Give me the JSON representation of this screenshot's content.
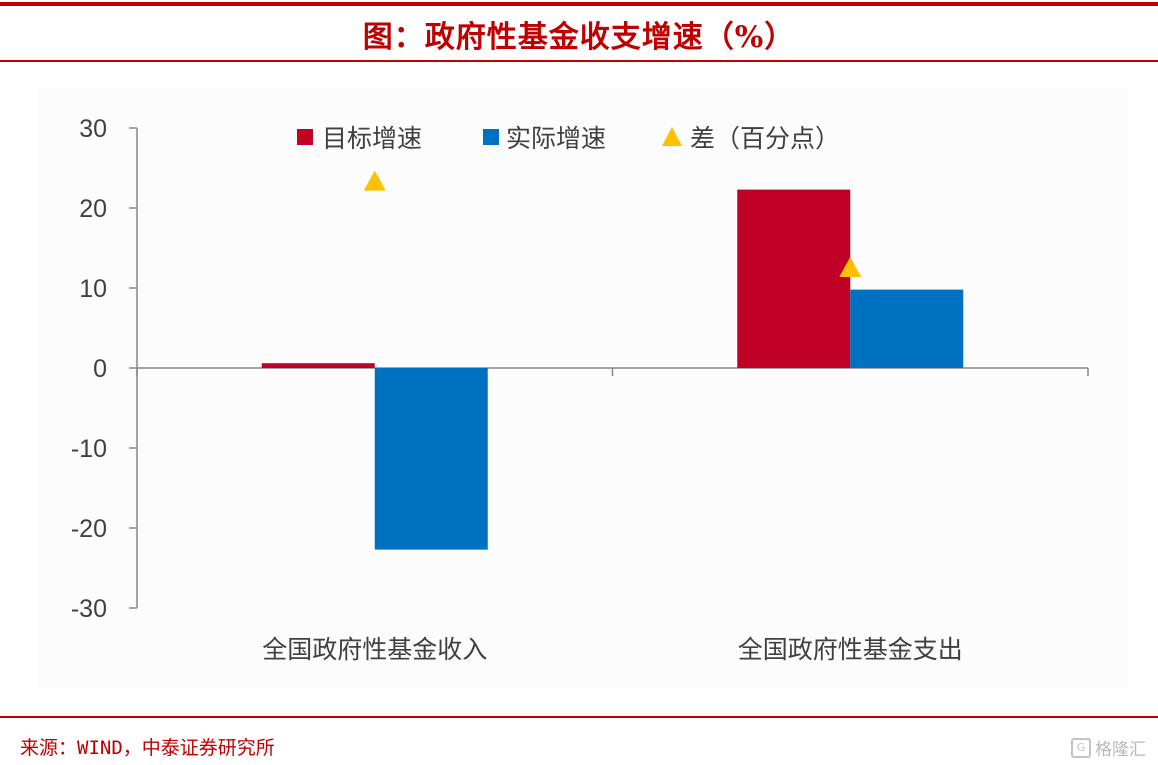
{
  "title": "图：政府性基金收支增速（%）",
  "source": "来源：WIND，中泰证券研究所",
  "watermark": "格隆汇",
  "colors": {
    "accent_red": "#c00000",
    "target": "#c00024",
    "actual": "#0070c0",
    "diff": "#ffc000",
    "axis": "#888888",
    "tick_text": "#404040"
  },
  "chart_data": {
    "type": "bar",
    "categories": [
      "全国政府性基金收入",
      "全国政府性基金支出"
    ],
    "series": [
      {
        "name": "目标增速",
        "values": [
          0.6,
          22.3
        ],
        "color": "#c00024"
      },
      {
        "name": "实际增速",
        "values": [
          -22.7,
          9.8
        ],
        "color": "#0070c0"
      },
      {
        "name": "差（百分点）",
        "values": [
          23.3,
          12.5
        ],
        "color": "#ffc000",
        "marker": "triangle"
      }
    ],
    "ylim": [
      -30,
      30
    ],
    "yticks": [
      30,
      20,
      10,
      0,
      -10,
      -20,
      -30
    ],
    "legend_position": "top",
    "grid": false
  }
}
